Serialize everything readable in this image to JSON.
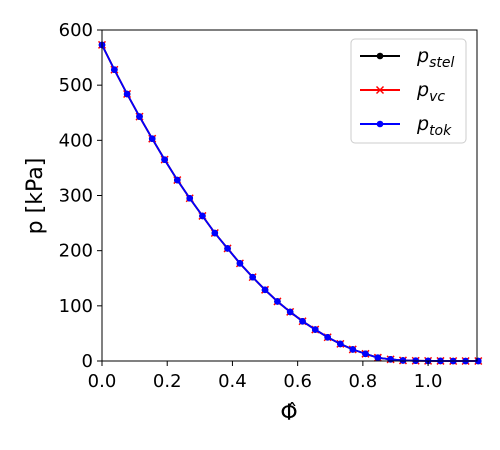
{
  "chart_data": {
    "type": "line",
    "xlabel": "Φ̂",
    "ylabel": "p [kPa]",
    "xlim": [
      0,
      1.15
    ],
    "ylim": [
      0,
      600
    ],
    "x_ticks": [
      0.0,
      0.2,
      0.4,
      0.6,
      0.8,
      1.0
    ],
    "x_tick_labels": [
      "0.0",
      "0.2",
      "0.4",
      "0.6",
      "0.8",
      "1.0"
    ],
    "y_ticks": [
      0,
      100,
      200,
      300,
      400,
      500,
      600
    ],
    "y_tick_labels": [
      "0",
      "100",
      "200",
      "300",
      "400",
      "500",
      "600"
    ],
    "grid": false,
    "legend_position": "top-right",
    "x": [
      0.0,
      0.038,
      0.077,
      0.115,
      0.154,
      0.192,
      0.231,
      0.269,
      0.308,
      0.346,
      0.385,
      0.423,
      0.462,
      0.5,
      0.538,
      0.577,
      0.615,
      0.654,
      0.692,
      0.731,
      0.769,
      0.808,
      0.846,
      0.885,
      0.923,
      0.962,
      1.0,
      1.038,
      1.077,
      1.115,
      1.154
    ],
    "series": [
      {
        "name": "stel",
        "color": "#000000",
        "marker": "circle",
        "values": [
          573,
          528,
          484,
          443,
          403,
          365,
          328,
          295,
          263,
          232,
          204,
          177,
          152,
          129,
          108,
          89,
          72,
          57,
          43,
          31,
          21,
          13,
          6,
          3,
          1,
          0.5,
          0.2,
          0.1,
          0,
          0,
          0
        ]
      },
      {
        "name": "vc",
        "color": "#ff0000",
        "marker": "x",
        "values": [
          573,
          528,
          484,
          443,
          403,
          365,
          328,
          295,
          263,
          232,
          204,
          177,
          152,
          129,
          108,
          89,
          72,
          57,
          43,
          31,
          21,
          13,
          6,
          3,
          1,
          0.5,
          0.2,
          0.1,
          0,
          0,
          0
        ]
      },
      {
        "name": "tok",
        "color": "#0000ff",
        "marker": "circle",
        "values": [
          573,
          528,
          484,
          443,
          403,
          365,
          328,
          295,
          263,
          232,
          204,
          177,
          152,
          129,
          108,
          89,
          72,
          57,
          43,
          31,
          21,
          13,
          6,
          3,
          1,
          0.5,
          0.2,
          0.1,
          0,
          0,
          0
        ]
      }
    ],
    "legend": [
      {
        "base": "p",
        "sub": "stel"
      },
      {
        "base": "p",
        "sub": "vc"
      },
      {
        "base": "p",
        "sub": "tok"
      }
    ]
  }
}
